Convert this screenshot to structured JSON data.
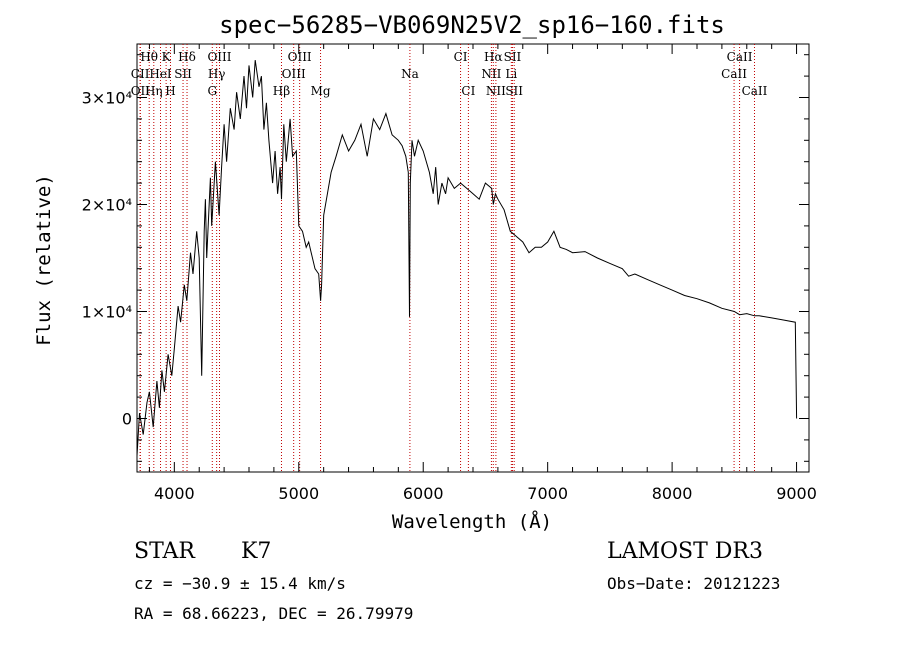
{
  "chart_data": {
    "type": "line",
    "title": "spec−56285−VB069N25V2_sp16−160.fits",
    "xlabel": "Wavelength (Å)",
    "ylabel": "Flux (relative)",
    "xlim": [
      3700,
      9100
    ],
    "ylim": [
      -5000,
      35000
    ],
    "x_ticks": [
      {
        "value": 4000,
        "label": "4000"
      },
      {
        "value": 5000,
        "label": "5000"
      },
      {
        "value": 6000,
        "label": "6000"
      },
      {
        "value": 7000,
        "label": "7000"
      },
      {
        "value": 8000,
        "label": "8000"
      },
      {
        "value": 9000,
        "label": "9000"
      }
    ],
    "y_ticks": [
      {
        "value": 0,
        "label": "0"
      },
      {
        "value": 10000,
        "label": "1×10⁴"
      },
      {
        "value": 20000,
        "label": "2×10⁴"
      },
      {
        "value": 30000,
        "label": "3×10⁴"
      }
    ],
    "spectrum": {
      "x": [
        3700,
        3720,
        3750,
        3780,
        3800,
        3830,
        3860,
        3880,
        3900,
        3920,
        3950,
        3980,
        4000,
        4030,
        4050,
        4080,
        4100,
        4130,
        4150,
        4180,
        4200,
        4220,
        4240,
        4250,
        4260,
        4290,
        4300,
        4330,
        4360,
        4380,
        4400,
        4420,
        4450,
        4480,
        4500,
        4530,
        4560,
        4580,
        4600,
        4630,
        4650,
        4680,
        4700,
        4720,
        4740,
        4760,
        4790,
        4810,
        4830,
        4850,
        4861,
        4880,
        4900,
        4930,
        4950,
        4980,
        5000,
        5030,
        5060,
        5080,
        5100,
        5130,
        5160,
        5175,
        5183,
        5200,
        5230,
        5260,
        5300,
        5350,
        5400,
        5450,
        5500,
        5550,
        5600,
        5650,
        5700,
        5750,
        5800,
        5830,
        5860,
        5880,
        5890,
        5896,
        5910,
        5930,
        5960,
        6000,
        6050,
        6080,
        6100,
        6120,
        6150,
        6180,
        6200,
        6250,
        6300,
        6350,
        6400,
        6450,
        6500,
        6550,
        6563,
        6580,
        6600,
        6650,
        6700,
        6750,
        6800,
        6850,
        6900,
        6950,
        7000,
        7050,
        7100,
        7150,
        7200,
        7300,
        7400,
        7500,
        7600,
        7650,
        7700,
        7800,
        7900,
        8000,
        8100,
        8200,
        8300,
        8400,
        8500,
        8542,
        8600,
        8662,
        8700,
        8800,
        8900,
        8990,
        9000
      ],
      "y": [
        -3500,
        500,
        -1500,
        1500,
        2500,
        -800,
        3500,
        1000,
        4500,
        2500,
        6000,
        4000,
        6500,
        10500,
        9000,
        12500,
        11000,
        15500,
        13500,
        17500,
        15000,
        4000,
        17500,
        20500,
        15000,
        22500,
        18000,
        24000,
        19000,
        23500,
        27500,
        24000,
        29000,
        27000,
        30500,
        28000,
        32000,
        29000,
        33000,
        30000,
        33500,
        31000,
        32000,
        27000,
        29500,
        26000,
        22000,
        25000,
        21000,
        23500,
        20500,
        27500,
        24000,
        28000,
        24500,
        25000,
        18000,
        17500,
        16000,
        16500,
        15500,
        14000,
        13500,
        11000,
        12500,
        19000,
        21000,
        23000,
        24500,
        26500,
        25000,
        26000,
        27500,
        24500,
        28000,
        27000,
        28500,
        26500,
        26000,
        25500,
        24500,
        23000,
        9500,
        22000,
        26000,
        24500,
        26000,
        25000,
        23000,
        21000,
        23500,
        20000,
        22000,
        21000,
        22500,
        21500,
        22000,
        21500,
        21000,
        20500,
        22000,
        21500,
        20000,
        21000,
        20500,
        19500,
        17500,
        17000,
        16500,
        15500,
        16000,
        16000,
        16500,
        17500,
        16000,
        15800,
        15500,
        15600,
        15000,
        14500,
        14000,
        13300,
        13500,
        13000,
        12500,
        12000,
        11500,
        11200,
        10800,
        10300,
        10000,
        9700,
        9800,
        9600,
        9600,
        9400,
        9200,
        9000,
        0
      ]
    },
    "lines": [
      {
        "label": "Hθ",
        "x": 3798,
        "row": 0
      },
      {
        "label": "K",
        "x": 3934,
        "row": 0
      },
      {
        "label": "Hδ",
        "x": 4102,
        "row": 0
      },
      {
        "label": "OIII",
        "x": 4363,
        "row": 0
      },
      {
        "label": "OIII",
        "x": 5007,
        "row": 0
      },
      {
        "label": "CI",
        "x": 6300,
        "row": 0
      },
      {
        "label": "Hα",
        "x": 6563,
        "row": 0
      },
      {
        "label": "SII",
        "x": 6717,
        "row": 0
      },
      {
        "label": "CaII",
        "x": 8542,
        "row": 0
      },
      {
        "label": "CII",
        "x": 3725,
        "row": 1
      },
      {
        "label": "HeI",
        "x": 3889,
        "row": 1
      },
      {
        "label": "SII",
        "x": 4070,
        "row": 1
      },
      {
        "label": "Hγ",
        "x": 4340,
        "row": 1
      },
      {
        "label": "OIII",
        "x": 4959,
        "row": 1
      },
      {
        "label": "Na",
        "x": 5893,
        "row": 1
      },
      {
        "label": "NII",
        "x": 6548,
        "row": 1
      },
      {
        "label": "Li",
        "x": 6708,
        "row": 1
      },
      {
        "label": "CaII",
        "x": 8498,
        "row": 1
      },
      {
        "label": "OII",
        "x": 3727,
        "row": 2
      },
      {
        "label": "Hη",
        "x": 3835,
        "row": 2
      },
      {
        "label": "H",
        "x": 3969,
        "row": 2
      },
      {
        "label": "G",
        "x": 4305,
        "row": 2
      },
      {
        "label": "Hβ",
        "x": 4861,
        "row": 2
      },
      {
        "label": "Mg",
        "x": 5175,
        "row": 2
      },
      {
        "label": "CI",
        "x": 6363,
        "row": 2
      },
      {
        "label": "NII",
        "x": 6584,
        "row": 2
      },
      {
        "label": "SII",
        "x": 6731,
        "row": 2
      },
      {
        "label": "CaII",
        "x": 8662,
        "row": 2
      }
    ]
  },
  "info": {
    "object_class": "STAR",
    "subclass": "K7",
    "survey": "LAMOST DR3",
    "cz": "cz = −30.9 ± 15.4 km/s",
    "obs_date": "Obs−Date: 20121223",
    "coords": "RA =  68.66223, DEC =  26.79979"
  }
}
